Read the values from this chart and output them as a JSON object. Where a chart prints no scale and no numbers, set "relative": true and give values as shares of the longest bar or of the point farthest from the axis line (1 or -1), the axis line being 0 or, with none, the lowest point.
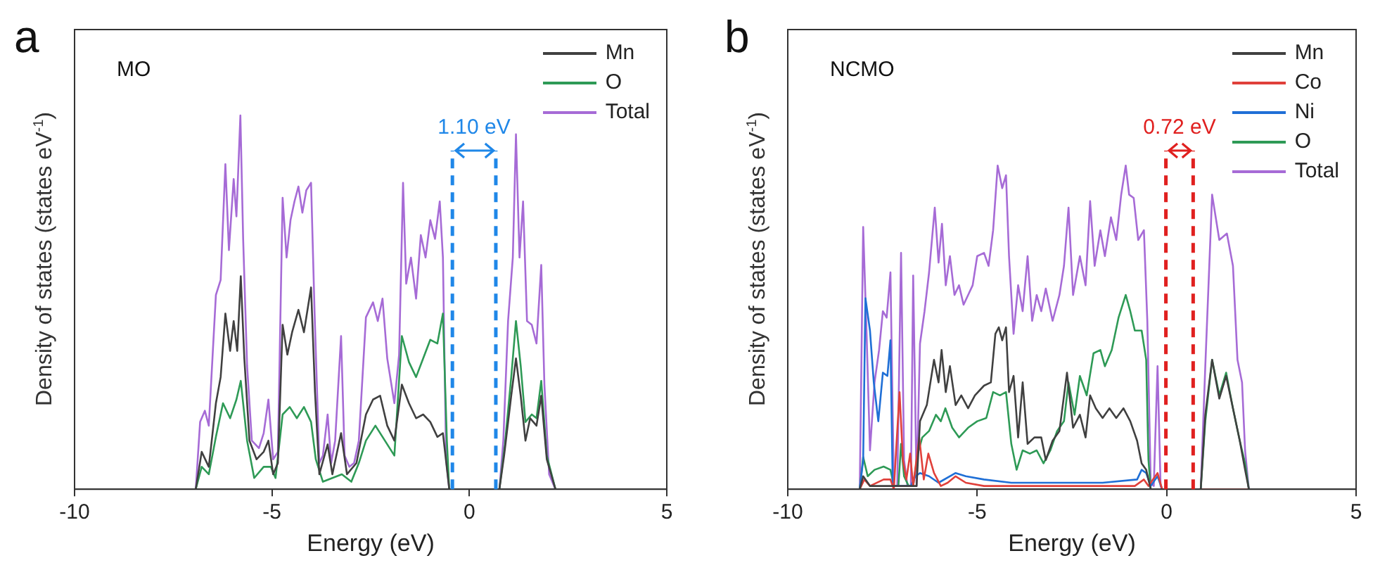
{
  "chart_data": [
    {
      "type": "line",
      "relative": true,
      "xlabel": "Energy (eV)",
      "ylabel": "Density of states (states eV$^{-1}$)",
      "xlim": [
        -10,
        5
      ],
      "xticks": [
        -10,
        -5,
        0,
        5
      ],
      "legend": "top right",
      "marker": "none",
      "annotations": [
        "a",
        "MO",
        "1.10 eV"
      ],
      "ref_lines": [
        {
          "axis": "x",
          "value": -0.43,
          "color": "#1f87e8",
          "line_style": "dashed"
        },
        {
          "axis": "x",
          "value": 0.67,
          "color": "#1f87e8",
          "line_style": "dashed"
        }
      ],
      "series": [
        {
          "name": "Mn",
          "color": "#404040",
          "x": [
            -10,
            -6.93,
            -6.78,
            -6.6,
            -6.42,
            -6.3,
            -6.18,
            -6.06,
            -5.97,
            -5.88,
            -5.79,
            -5.7,
            -5.57,
            -5.39,
            -5.21,
            -5.09,
            -4.97,
            -4.85,
            -4.73,
            -4.61,
            -4.49,
            -4.33,
            -4.19,
            -4.01,
            -3.91,
            -3.8,
            -3.59,
            -3.47,
            -3.25,
            -3.1,
            -2.86,
            -2.62,
            -2.44,
            -2.26,
            -2.08,
            -1.9,
            -1.71,
            -1.53,
            -1.35,
            -1.17,
            -0.99,
            -0.81,
            -0.67,
            -0.51,
            0.76,
            0.88,
            1.06,
            1.18,
            1.3,
            1.42,
            1.54,
            1.7,
            1.82,
            1.96,
            2.18,
            5
          ],
          "values": [
            0,
            0,
            0.1,
            0.06,
            0.23,
            0.3,
            0.47,
            0.37,
            0.45,
            0.37,
            0.57,
            0.35,
            0.13,
            0.08,
            0.1,
            0.13,
            0.04,
            0.07,
            0.44,
            0.36,
            0.42,
            0.48,
            0.42,
            0.54,
            0.26,
            0.04,
            0.12,
            0.04,
            0.15,
            0.04,
            0.07,
            0.2,
            0.24,
            0.25,
            0.17,
            0.13,
            0.28,
            0.23,
            0.19,
            0.2,
            0.18,
            0.14,
            0.15,
            0,
            0,
            0.09,
            0.25,
            0.35,
            0.25,
            0.13,
            0.19,
            0.17,
            0.25,
            0.08,
            0,
            0
          ]
        },
        {
          "name": "O",
          "color": "#2e9a56",
          "x": [
            -10,
            -6.93,
            -6.78,
            -6.6,
            -6.42,
            -6.24,
            -6.06,
            -5.9,
            -5.79,
            -5.63,
            -5.45,
            -5.21,
            -5.03,
            -4.91,
            -4.73,
            -4.55,
            -4.37,
            -4.19,
            -4.01,
            -3.89,
            -3.71,
            -3.47,
            -3.23,
            -2.99,
            -2.8,
            -2.62,
            -2.38,
            -2.14,
            -1.9,
            -1.71,
            -1.53,
            -1.35,
            -1.17,
            -0.99,
            -0.81,
            -0.67,
            -0.57,
            -0.51,
            0.76,
            0.9,
            1.06,
            1.18,
            1.3,
            1.42,
            1.58,
            1.7,
            1.82,
            1.96,
            2.18,
            5
          ],
          "values": [
            0,
            0,
            0.06,
            0.04,
            0.14,
            0.23,
            0.19,
            0.24,
            0.29,
            0.13,
            0.03,
            0.06,
            0.06,
            0.03,
            0.2,
            0.22,
            0.19,
            0.22,
            0.18,
            0.08,
            0.02,
            0.03,
            0.04,
            0.02,
            0.07,
            0.13,
            0.17,
            0.13,
            0.09,
            0.41,
            0.34,
            0.3,
            0.35,
            0.4,
            0.39,
            0.47,
            0.13,
            0,
            0,
            0.12,
            0.3,
            0.45,
            0.33,
            0.18,
            0.2,
            0.19,
            0.29,
            0.09,
            0,
            0
          ]
        },
        {
          "name": "Total",
          "color": "#a66bd6",
          "x": [
            -10,
            -6.93,
            -6.82,
            -6.7,
            -6.6,
            -6.42,
            -6.3,
            -6.18,
            -6.09,
            -5.97,
            -5.9,
            -5.8,
            -5.73,
            -5.63,
            -5.51,
            -5.33,
            -5.21,
            -5.09,
            -4.97,
            -4.85,
            -4.73,
            -4.63,
            -4.53,
            -4.43,
            -4.33,
            -4.23,
            -4.13,
            -4.01,
            -3.92,
            -3.8,
            -3.71,
            -3.59,
            -3.5,
            -3.4,
            -3.25,
            -3.16,
            -3.04,
            -2.92,
            -2.8,
            -2.62,
            -2.44,
            -2.32,
            -2.2,
            -2.08,
            -1.9,
            -1.78,
            -1.68,
            -1.6,
            -1.48,
            -1.35,
            -1.23,
            -1.11,
            -0.99,
            -0.87,
            -0.75,
            -0.67,
            -0.59,
            -0.51,
            0.76,
            0.86,
            0.98,
            1.1,
            1.18,
            1.27,
            1.36,
            1.46,
            1.58,
            1.7,
            1.82,
            1.9,
            2.02,
            2.18,
            5
          ],
          "values": [
            0,
            0,
            0.18,
            0.21,
            0.17,
            0.52,
            0.56,
            0.87,
            0.64,
            0.83,
            0.73,
            1,
            0.67,
            0.33,
            0.13,
            0.11,
            0.15,
            0.24,
            0.08,
            0.1,
            0.78,
            0.62,
            0.72,
            0.77,
            0.81,
            0.74,
            0.8,
            0.82,
            0.47,
            0.07,
            0.09,
            0.2,
            0.07,
            0.13,
            0.41,
            0.09,
            0.06,
            0.07,
            0.13,
            0.46,
            0.5,
            0.45,
            0.51,
            0.35,
            0.23,
            0.36,
            0.82,
            0.55,
            0.62,
            0.51,
            0.68,
            0.62,
            0.72,
            0.67,
            0.77,
            0.62,
            0.08,
            0,
            0,
            0.13,
            0.45,
            0.62,
            0.95,
            0.62,
            0.77,
            0.45,
            0.44,
            0.39,
            0.6,
            0.28,
            0.04,
            0,
            0
          ]
        }
      ]
    },
    {
      "type": "line",
      "relative": true,
      "xlabel": "Energy (eV)",
      "ylabel": "Density of states (states eV$^{-1}$)",
      "xlim": [
        -10,
        5
      ],
      "xticks": [
        -10,
        -5,
        0,
        5
      ],
      "legend": "top right",
      "marker": "none",
      "annotations": [
        "b",
        "NCMO",
        "0.72 eV"
      ],
      "ref_lines": [
        {
          "axis": "x",
          "value": -0.02,
          "color": "#e0201f",
          "line_style": "dashed"
        },
        {
          "axis": "x",
          "value": 0.7,
          "color": "#e0201f",
          "line_style": "dashed"
        }
      ],
      "series": [
        {
          "name": "Mn",
          "color": "#404040",
          "x": [
            -10,
            -8.1,
            -8.01,
            -7.83,
            -7.5,
            -6.6,
            -6.51,
            -6.33,
            -6.14,
            -6.02,
            -5.94,
            -5.83,
            -5.72,
            -5.57,
            -5.42,
            -5.24,
            -5.06,
            -4.82,
            -4.64,
            -4.52,
            -4.43,
            -4.34,
            -4.24,
            -4.16,
            -4.04,
            -3.92,
            -3.8,
            -3.67,
            -3.49,
            -3.31,
            -3.19,
            -3.01,
            -2.83,
            -2.63,
            -2.47,
            -2.29,
            -2.14,
            -2.02,
            -1.87,
            -1.69,
            -1.51,
            -1.33,
            -1.14,
            -0.96,
            -0.78,
            -0.66,
            -0.54,
            -0.42,
            0.9,
            1.02,
            1.2,
            1.39,
            1.57,
            1.75,
            1.93,
            2.07,
            2.17,
            5
          ],
          "values": [
            0,
            0,
            0.04,
            0.01,
            0.01,
            0.01,
            0.21,
            0.26,
            0.4,
            0.33,
            0.43,
            0.3,
            0.38,
            0.26,
            0.29,
            0.25,
            0.29,
            0.32,
            0.33,
            0.48,
            0.5,
            0.46,
            0.5,
            0.3,
            0.35,
            0.16,
            0.33,
            0.14,
            0.16,
            0.16,
            0.09,
            0.15,
            0.18,
            0.36,
            0.19,
            0.23,
            0.16,
            0.29,
            0.25,
            0.22,
            0.25,
            0.22,
            0.25,
            0.21,
            0.15,
            0.08,
            0.06,
            0,
            0,
            0.23,
            0.4,
            0.28,
            0.35,
            0.25,
            0.15,
            0.06,
            0,
            0
          ]
        },
        {
          "name": "Co",
          "color": "#e0403a",
          "x": [
            -10,
            -8.1,
            -7.98,
            -7.83,
            -7.47,
            -7.29,
            -7.2,
            -7.05,
            -6.96,
            -6.87,
            -6.77,
            -6.69,
            -6.53,
            -6.41,
            -6.29,
            -6.14,
            -5.96,
            -5.78,
            -5.57,
            -5.3,
            -4.82,
            -4.1,
            -2.89,
            -1.69,
            -0.84,
            -0.6,
            -0.48,
            -0.24,
            -0.12,
            5
          ],
          "values": [
            0,
            0,
            0.03,
            0.01,
            0.03,
            0.03,
            0,
            0.3,
            0.09,
            0.03,
            0.11,
            0.01,
            0.16,
            0.03,
            0.11,
            0.05,
            0.01,
            0.02,
            0.04,
            0.02,
            0.01,
            0.01,
            0.01,
            0.01,
            0.01,
            0.03,
            0.01,
            0.05,
            0,
            0
          ]
        },
        {
          "name": "Ni",
          "color": "#1f6fd6",
          "x": [
            -10,
            -8.1,
            -8.01,
            -7.95,
            -7.83,
            -7.73,
            -7.61,
            -7.49,
            -7.37,
            -7.29,
            -7.23,
            -6.75,
            -6.63,
            -6.51,
            -6.27,
            -6.02,
            -5.57,
            -5.3,
            -4.82,
            -4.1,
            -2.89,
            -1.69,
            -0.78,
            -0.66,
            -0.54,
            -0.42,
            -0.24,
            -0.12,
            5
          ],
          "values": [
            0,
            0,
            0.09,
            0.59,
            0.49,
            0.33,
            0.21,
            0.36,
            0.35,
            0.46,
            0.01,
            0.01,
            0.04,
            0.05,
            0.04,
            0.02,
            0.05,
            0.04,
            0.03,
            0.02,
            0.02,
            0.02,
            0.03,
            0.06,
            0.05,
            0.01,
            0.04,
            0,
            0
          ]
        },
        {
          "name": "O",
          "color": "#2e9a56",
          "x": [
            -10,
            -8.1,
            -8.01,
            -7.89,
            -7.71,
            -7.47,
            -7.29,
            -7.2,
            -7.08,
            -7.01,
            -6.93,
            -6.81,
            -6.69,
            -6.57,
            -6.45,
            -6.27,
            -6.09,
            -5.96,
            -5.84,
            -5.66,
            -5.48,
            -5.24,
            -5,
            -4.76,
            -4.58,
            -4.4,
            -4.24,
            -4.1,
            -3.96,
            -3.8,
            -3.61,
            -3.43,
            -3.25,
            -3.07,
            -2.89,
            -2.71,
            -2.59,
            -2.43,
            -2.29,
            -2.11,
            -1.93,
            -1.75,
            -1.63,
            -1.45,
            -1.27,
            -1.08,
            -0.96,
            -0.84,
            -0.66,
            -0.54,
            -0.48,
            -0.42,
            0.9,
            1.02,
            1.2,
            1.39,
            1.57,
            1.75,
            1.93,
            2.07,
            2.17,
            5
          ],
          "values": [
            0,
            0,
            0.1,
            0.04,
            0.06,
            0.07,
            0.06,
            0.01,
            0.01,
            0.14,
            0.04,
            0.01,
            0.01,
            0.11,
            0.16,
            0.18,
            0.23,
            0.21,
            0.25,
            0.19,
            0.16,
            0.19,
            0.21,
            0.22,
            0.3,
            0.29,
            0.3,
            0.14,
            0.06,
            0.12,
            0.11,
            0.12,
            0.08,
            0.12,
            0.18,
            0.21,
            0.33,
            0.23,
            0.35,
            0.29,
            0.42,
            0.43,
            0.38,
            0.43,
            0.53,
            0.6,
            0.55,
            0.49,
            0.49,
            0.4,
            0.09,
            0,
            0,
            0.21,
            0.4,
            0.29,
            0.36,
            0.25,
            0.15,
            0.08,
            0,
            0
          ]
        },
        {
          "name": "Total",
          "color": "#a66bd6",
          "x": [
            -10,
            -8.1,
            -8.01,
            -7.93,
            -7.83,
            -7.71,
            -7.59,
            -7.49,
            -7.39,
            -7.29,
            -7.2,
            -7.11,
            -7.01,
            -6.93,
            -6.84,
            -6.75,
            -6.69,
            -6.6,
            -6.51,
            -6.39,
            -6.27,
            -6.12,
            -6.02,
            -5.93,
            -5.83,
            -5.72,
            -5.6,
            -5.48,
            -5.36,
            -5.24,
            -5.12,
            -5,
            -4.82,
            -4.7,
            -4.58,
            -4.46,
            -4.34,
            -4.24,
            -4.16,
            -4.04,
            -3.92,
            -3.8,
            -3.67,
            -3.55,
            -3.43,
            -3.31,
            -3.19,
            -3.01,
            -2.83,
            -2.71,
            -2.59,
            -2.47,
            -2.29,
            -2.14,
            -2.02,
            -1.9,
            -1.75,
            -1.63,
            -1.47,
            -1.33,
            -1.2,
            -1.08,
            -0.99,
            -0.87,
            -0.75,
            -0.6,
            -0.51,
            -0.42,
            -0.34,
            -0.24,
            -0.16,
            -0.12,
            0.9,
            1.02,
            1.2,
            1.39,
            1.59,
            1.75,
            1.87,
            1.99,
            2.07,
            2.17,
            5
          ],
          "values": [
            0,
            0,
            0.81,
            0.52,
            0.12,
            0.33,
            0.43,
            0.55,
            0.53,
            0.67,
            0.01,
            0.01,
            0.73,
            0.09,
            0.01,
            0.01,
            0.66,
            0.01,
            0.45,
            0.55,
            0.67,
            0.87,
            0.7,
            0.82,
            0.63,
            0.72,
            0.6,
            0.63,
            0.57,
            0.6,
            0.63,
            0.72,
            0.73,
            0.69,
            0.8,
            1,
            0.93,
            0.97,
            0.72,
            0.48,
            0.63,
            0.55,
            0.72,
            0.52,
            0.6,
            0.55,
            0.62,
            0.52,
            0.6,
            0.69,
            0.87,
            0.6,
            0.72,
            0.63,
            0.89,
            0.69,
            0.8,
            0.72,
            0.84,
            0.77,
            0.91,
            1,
            0.91,
            0.9,
            0.77,
            0.8,
            0.52,
            0.02,
            0.01,
            0.38,
            0.01,
            0,
            0,
            0.38,
            0.91,
            0.77,
            0.79,
            0.69,
            0.4,
            0.33,
            0.12,
            0,
            0
          ]
        }
      ]
    }
  ]
}
